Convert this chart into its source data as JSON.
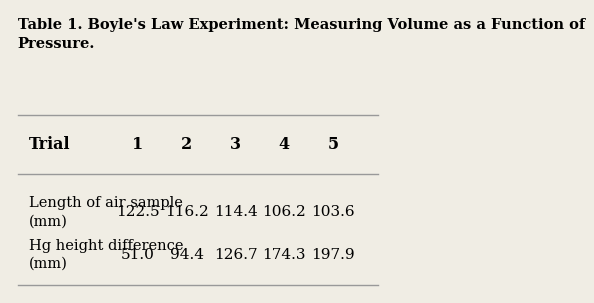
{
  "title_line1": "Table 1. Boyle's Law Experiment: Measuring Volume as a Function of",
  "title_line2": "Pressure.",
  "col_header": [
    "Trial",
    "1",
    "2",
    "3",
    "4",
    "5"
  ],
  "row1_label": "Length of air sample\n(mm)",
  "row1_values": [
    "122.5",
    "116.2",
    "114.4",
    "106.2",
    "103.6"
  ],
  "row2_label": "Hg height difference\n(mm)",
  "row2_values": [
    "51.0",
    "94.4",
    "126.7",
    "174.3",
    "197.9"
  ],
  "bg_color": "#f0ede4",
  "text_color": "#000000",
  "line_color": "#999999",
  "title_fontsize": 10.5,
  "header_fontsize": 11.5,
  "cell_fontsize": 11,
  "label_fontsize": 10.5
}
